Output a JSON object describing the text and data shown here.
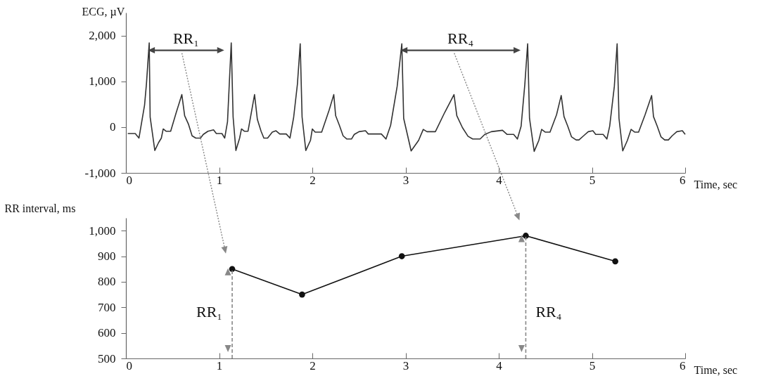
{
  "chart_data": [
    {
      "type": "line",
      "xlabel": "Time, sec",
      "ylabel": "ECG, µV",
      "xlim": [
        0,
        6
      ],
      "xticks": [
        0,
        1,
        2,
        3,
        4,
        5,
        6
      ],
      "ylim": [
        -1000,
        2500
      ],
      "yticks": [
        {
          "value": -1000,
          "label": "-1,000"
        },
        0,
        {
          "value": 1000,
          "label": "1,000"
        },
        {
          "value": 2000,
          "label": "2,000"
        }
      ],
      "series": [
        {
          "color": "#333333",
          "x": [
            0.02,
            0.1,
            0.14,
            0.16,
            0.2,
            0.22,
            0.25,
            0.26,
            0.31,
            0.35,
            0.38,
            0.4,
            0.43,
            0.48,
            0.54,
            0.6,
            0.63,
            0.67,
            0.71,
            0.75,
            0.8,
            0.83,
            0.88,
            0.94,
            0.97,
            1.03,
            1.06,
            1.09,
            1.11,
            1.13,
            1.15,
            1.18,
            1.22,
            1.24,
            1.27,
            1.31,
            1.38,
            1.41,
            1.45,
            1.48,
            1.52,
            1.57,
            1.61,
            1.65,
            1.72,
            1.76,
            1.8,
            1.84,
            1.87,
            1.89,
            1.93,
            1.98,
            2.0,
            2.03,
            2.1,
            2.18,
            2.23,
            2.25,
            2.29,
            2.33,
            2.37,
            2.42,
            2.45,
            2.5,
            2.57,
            2.6,
            2.74,
            2.79,
            2.84,
            2.91,
            2.96,
            2.98,
            3.06,
            3.14,
            3.19,
            3.23,
            3.32,
            3.42,
            3.52,
            3.55,
            3.61,
            3.67,
            3.72,
            3.8,
            3.85,
            3.92,
            4.04,
            4.09,
            4.16,
            4.2,
            4.24,
            4.28,
            4.31,
            4.33,
            4.38,
            4.43,
            4.46,
            4.5,
            4.55,
            4.62,
            4.67,
            4.7,
            4.74,
            4.78,
            4.83,
            4.86,
            4.91,
            4.96,
            5.01,
            5.04,
            5.12,
            5.16,
            5.19,
            5.24,
            5.27,
            5.29,
            5.33,
            5.38,
            5.42,
            5.46,
            5.5,
            5.57,
            5.64,
            5.66,
            5.7,
            5.74,
            5.78,
            5.82,
            5.86,
            5.91,
            5.97,
            6.0
          ],
          "values": [
            -140,
            -140,
            -240,
            0,
            480,
            940,
            1840,
            220,
            -510,
            -340,
            -240,
            -40,
            -90,
            -90,
            320,
            710,
            250,
            70,
            -190,
            -240,
            -240,
            -160,
            -90,
            -60,
            -140,
            -140,
            -240,
            120,
            990,
            1840,
            220,
            -510,
            -240,
            -40,
            -90,
            -90,
            710,
            170,
            -90,
            -240,
            -240,
            -110,
            -80,
            -150,
            -150,
            -240,
            220,
            940,
            1820,
            220,
            -510,
            -290,
            -40,
            -110,
            -110,
            370,
            710,
            250,
            40,
            -190,
            -260,
            -260,
            -160,
            -100,
            -80,
            -150,
            -150,
            -260,
            40,
            890,
            1820,
            190,
            -520,
            -290,
            -50,
            -100,
            -100,
            320,
            710,
            250,
            -10,
            -200,
            -260,
            -260,
            -160,
            -100,
            -70,
            -160,
            -160,
            -260,
            20,
            940,
            1820,
            190,
            -530,
            -290,
            -50,
            -110,
            -110,
            270,
            690,
            230,
            20,
            -210,
            -280,
            -280,
            -190,
            -100,
            -80,
            -160,
            -160,
            -260,
            20,
            890,
            1820,
            190,
            -520,
            -290,
            -50,
            -110,
            -110,
            270,
            690,
            230,
            20,
            -210,
            -280,
            -280,
            -190,
            -100,
            -80,
            -160
          ]
        }
      ],
      "annotations": [
        "RR₁",
        "RR₄"
      ]
    },
    {
      "type": "line",
      "marker": "circle",
      "xlabel": "Time, sec",
      "ylabel": "RR interval, ms",
      "xlim": [
        0,
        6
      ],
      "xticks": [
        0,
        1,
        2,
        3,
        4,
        5,
        6
      ],
      "ylim": [
        500,
        1050
      ],
      "yticks": [
        500,
        600,
        700,
        800,
        900,
        {
          "value": 1000,
          "label": "1,000"
        }
      ],
      "series": [
        {
          "color": "#111111",
          "x": [
            1.14,
            1.89,
            2.96,
            4.29,
            5.25
          ],
          "values": [
            850,
            750,
            900,
            980,
            880
          ]
        }
      ],
      "ref_lines": [
        {
          "axis": "x",
          "value": 1.14,
          "label": "RR₁",
          "color": "#888888",
          "line_style": "dashed"
        },
        {
          "axis": "x",
          "value": 4.29,
          "label": "RR₄",
          "color": "#888888",
          "line_style": "dashed"
        }
      ]
    }
  ]
}
